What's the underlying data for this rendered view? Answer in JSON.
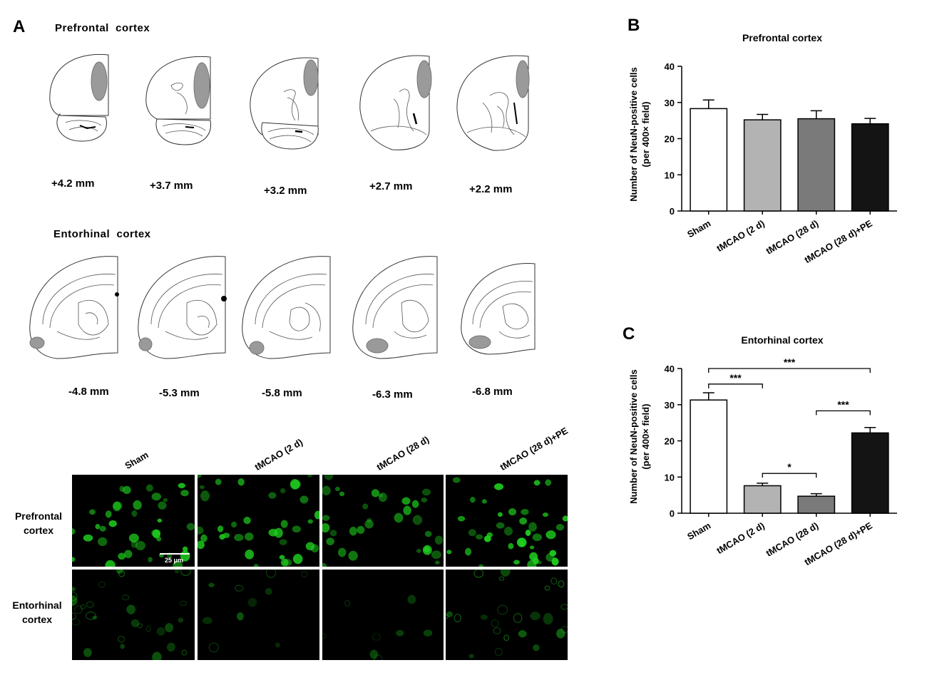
{
  "panelA": {
    "letter": "A",
    "prefrontal_title": "Prefrontal  cortex",
    "entorhinal_title": "Entorhinal  cortex",
    "prefrontal_coords": [
      "+4.2 mm",
      "+3.7 mm",
      "+3.2 mm",
      "+2.7 mm",
      "+2.2 mm"
    ],
    "entorhinal_coords": [
      "-4.8 mm",
      "-5.3 mm",
      "-5.8 mm",
      "-6.3 mm",
      "-6.8 mm"
    ],
    "micro_columns": [
      "Sham",
      "tMCAO (2 d)",
      "tMCAO (28 d)",
      "tMCAO (28 d)+PE"
    ],
    "micro_rows": [
      [
        "Prefrontal",
        "cortex"
      ],
      [
        "Entorhinal",
        "cortex"
      ]
    ],
    "scale_bar": "25 μm",
    "colors": {
      "region_fill": "#9a9a9a",
      "stain": "#1fd11f"
    }
  },
  "panelB": {
    "letter": "B"
  },
  "panelC": {
    "letter": "C"
  },
  "chart_data": [
    {
      "type": "bar",
      "title": "Prefrontal cortex",
      "ylabel": [
        "Number of NeuN-positive cells",
        "(per 400× field)"
      ],
      "categories": [
        "Sham",
        "tMCAO (2 d)",
        "tMCAO (28 d)",
        "tMCAO (28 d)+PE"
      ],
      "values": [
        28.3,
        25.2,
        25.5,
        24.1
      ],
      "errors": [
        2.4,
        1.5,
        2.2,
        1.5
      ],
      "ylim": [
        0,
        40
      ],
      "yticks": [
        0,
        10,
        20,
        30,
        40
      ],
      "bar_colors": [
        "#ffffff",
        "#b3b3b3",
        "#7a7a7a",
        "#141414"
      ],
      "significance": []
    },
    {
      "type": "bar",
      "title": "Entorhinal cortex",
      "ylabel": [
        "Number of NeuN-positive cells",
        "(per 400× field)"
      ],
      "categories": [
        "Sham",
        "tMCAO (2 d)",
        "tMCAO (28 d)",
        "tMCAO (28 d)+PE"
      ],
      "values": [
        31.3,
        7.6,
        4.7,
        22.2
      ],
      "errors": [
        2.0,
        0.7,
        0.7,
        1.5
      ],
      "ylim": [
        0,
        40
      ],
      "yticks": [
        0,
        10,
        20,
        30,
        40
      ],
      "bar_colors": [
        "#ffffff",
        "#b3b3b3",
        "#7a7a7a",
        "#141414"
      ],
      "significance": [
        {
          "from": 0,
          "to": 1,
          "label": "***",
          "y": 35.7
        },
        {
          "from": 0,
          "to": 3,
          "label": "***",
          "y": 40.0
        },
        {
          "from": 1,
          "to": 2,
          "label": "*",
          "y": 11.0
        },
        {
          "from": 2,
          "to": 3,
          "label": "***",
          "y": 28.3
        }
      ]
    }
  ]
}
